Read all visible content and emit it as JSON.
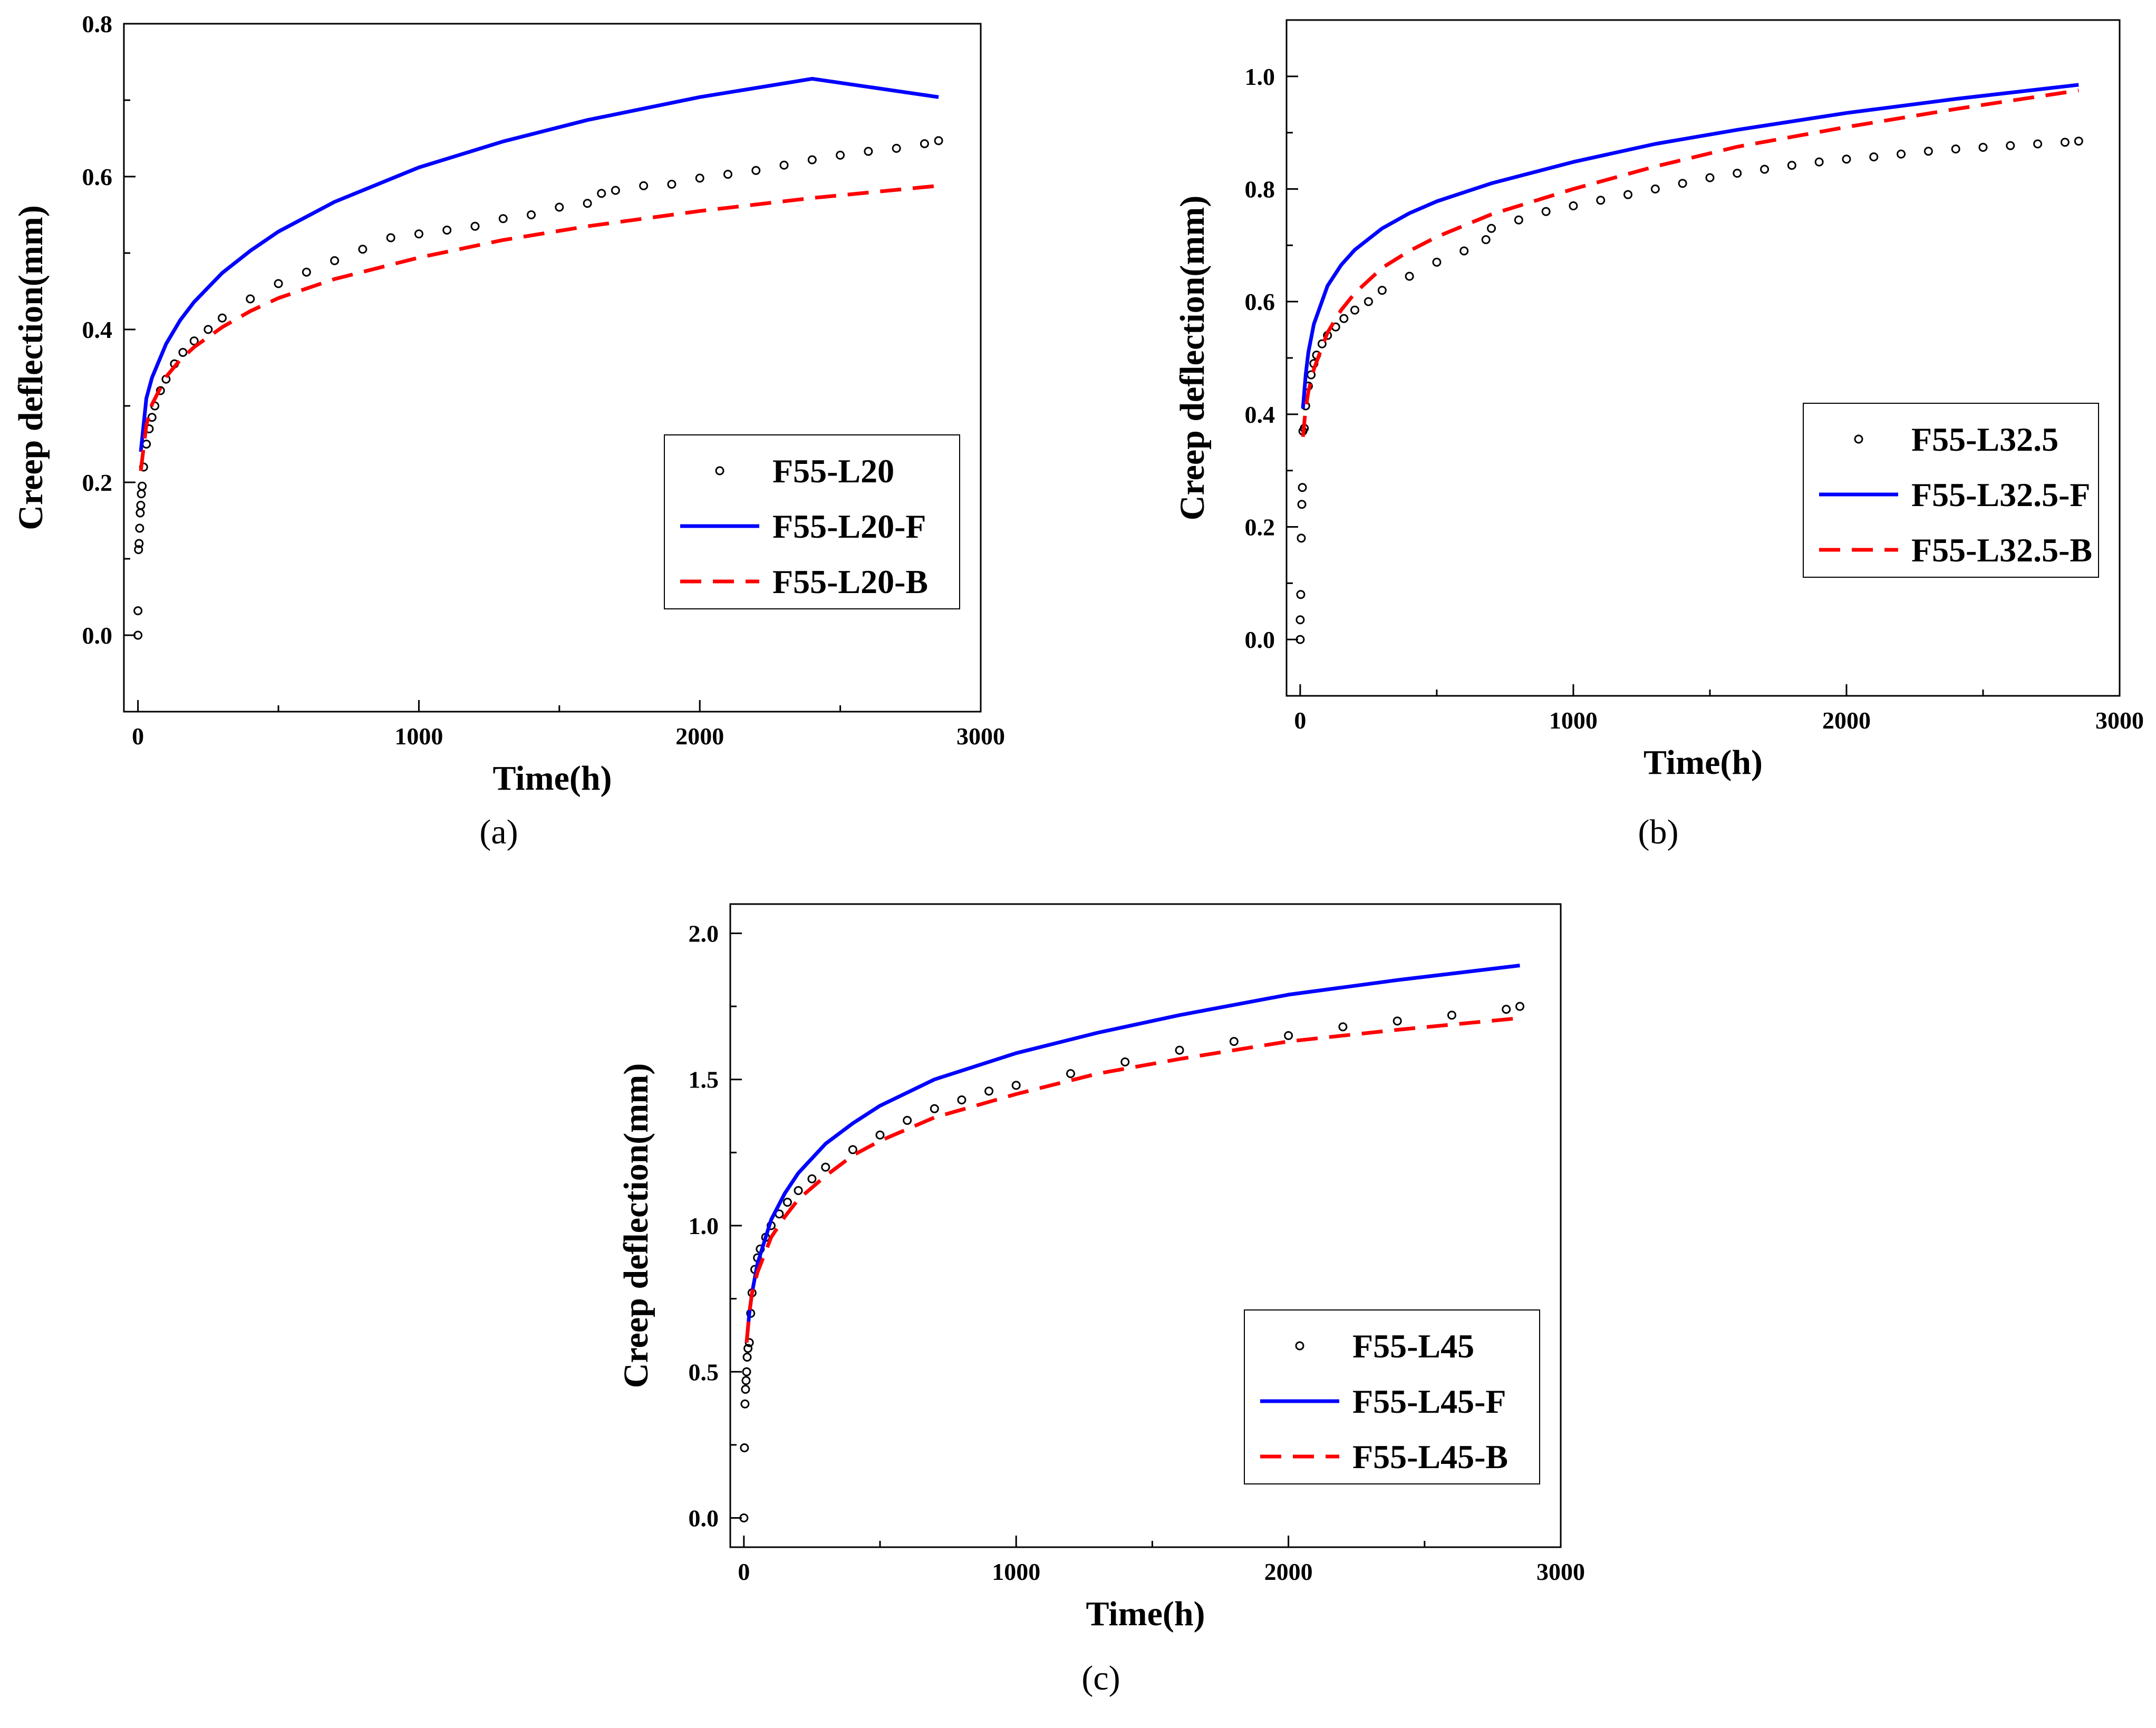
{
  "figure": {
    "colors": {
      "measured": "#000000",
      "fit_f": "#0000ff",
      "fit_b": "#ff0000"
    }
  },
  "chart_data": [
    {
      "type": "line",
      "caption": "(a)",
      "xlabel": "Time(h)",
      "ylabel": "Creep deflection(mm)",
      "xlim": [
        -50,
        3000
      ],
      "ylim": [
        -0.1,
        0.8
      ],
      "xticks": [
        "0",
        "1000",
        "2000",
        "3000"
      ],
      "yticks": [
        "0.0",
        "0.2",
        "0.4",
        "0.6",
        "0.8"
      ],
      "legend_position": "bottom-right",
      "series": [
        {
          "name": "F55-L20",
          "style": "circles",
          "x": [
            0,
            0,
            2,
            4,
            6,
            8,
            10,
            12,
            15,
            20,
            30,
            40,
            50,
            60,
            80,
            100,
            130,
            160,
            200,
            250,
            300,
            400,
            500,
            600,
            700,
            800,
            900,
            1000,
            1100,
            1200,
            1300,
            1400,
            1500,
            1600,
            1650,
            1700,
            1800,
            1900,
            2000,
            2100,
            2200,
            2300,
            2400,
            2500,
            2600,
            2700,
            2800,
            2850
          ],
          "y": [
            0.0,
            0.032,
            0.112,
            0.12,
            0.14,
            0.16,
            0.17,
            0.185,
            0.195,
            0.22,
            0.25,
            0.27,
            0.285,
            0.3,
            0.32,
            0.335,
            0.355,
            0.37,
            0.385,
            0.4,
            0.415,
            0.44,
            0.46,
            0.475,
            0.49,
            0.505,
            0.52,
            0.525,
            0.53,
            0.535,
            0.545,
            0.55,
            0.56,
            0.565,
            0.578,
            0.582,
            0.588,
            0.59,
            0.598,
            0.603,
            0.608,
            0.615,
            0.622,
            0.628,
            0.633,
            0.637,
            0.643,
            0.647
          ]
        },
        {
          "name": "F55-L20-F",
          "style": "solid",
          "x": [
            10,
            30,
            50,
            100,
            150,
            200,
            300,
            400,
            500,
            700,
            1000,
            1300,
            1600,
            2000,
            2400,
            2850
          ],
          "y": [
            0.24,
            0.31,
            0.337,
            0.381,
            0.412,
            0.436,
            0.474,
            0.503,
            0.528,
            0.567,
            0.612,
            0.646,
            0.674,
            0.704,
            0.728,
            0.704
          ]
        },
        {
          "name": "F55-L20-B",
          "style": "dashed",
          "x": [
            10,
            30,
            50,
            100,
            150,
            200,
            300,
            400,
            500,
            700,
            1000,
            1300,
            1600,
            2000,
            2400,
            2850
          ],
          "y": [
            0.215,
            0.275,
            0.302,
            0.338,
            0.36,
            0.377,
            0.403,
            0.424,
            0.441,
            0.466,
            0.494,
            0.517,
            0.535,
            0.555,
            0.572,
            0.588
          ]
        }
      ]
    },
    {
      "type": "line",
      "caption": "(b)",
      "xlabel": "Time(h)",
      "ylabel": "Creep deflection(mm)",
      "xlim": [
        -50,
        3000
      ],
      "ylim": [
        -0.1,
        1.1
      ],
      "xticks": [
        "0",
        "1000",
        "2000",
        "3000"
      ],
      "yticks": [
        "0.0",
        "0.2",
        "0.4",
        "0.6",
        "0.8",
        "1.0"
      ],
      "legend_position": "bottom-right",
      "series": [
        {
          "name": "F55-L32.5",
          "style": "circles",
          "x": [
            0,
            0,
            2,
            4,
            6,
            8,
            10,
            15,
            20,
            30,
            40,
            50,
            60,
            80,
            100,
            130,
            160,
            200,
            250,
            300,
            400,
            500,
            600,
            680,
            700,
            800,
            900,
            1000,
            1100,
            1200,
            1300,
            1400,
            1500,
            1600,
            1700,
            1800,
            1900,
            2000,
            2100,
            2200,
            2300,
            2400,
            2500,
            2600,
            2700,
            2800,
            2850
          ],
          "y": [
            0.0,
            0.035,
            0.08,
            0.18,
            0.24,
            0.27,
            0.37,
            0.375,
            0.415,
            0.45,
            0.47,
            0.49,
            0.505,
            0.525,
            0.54,
            0.555,
            0.57,
            0.585,
            0.6,
            0.62,
            0.645,
            0.67,
            0.69,
            0.71,
            0.73,
            0.745,
            0.76,
            0.77,
            0.78,
            0.79,
            0.8,
            0.81,
            0.82,
            0.828,
            0.835,
            0.842,
            0.848,
            0.853,
            0.857,
            0.862,
            0.867,
            0.871,
            0.874,
            0.877,
            0.88,
            0.883,
            0.885
          ]
        },
        {
          "name": "F55-L32.5-F",
          "style": "solid",
          "x": [
            10,
            20,
            30,
            50,
            100,
            150,
            200,
            300,
            400,
            500,
            700,
            1000,
            1300,
            1600,
            2000,
            2400,
            2850
          ],
          "y": [
            0.41,
            0.47,
            0.51,
            0.56,
            0.628,
            0.665,
            0.692,
            0.73,
            0.757,
            0.778,
            0.81,
            0.848,
            0.88,
            0.905,
            0.935,
            0.96,
            0.985
          ]
        },
        {
          "name": "F55-L32.5-B",
          "style": "dashed",
          "x": [
            10,
            20,
            30,
            50,
            100,
            150,
            200,
            300,
            400,
            500,
            700,
            1000,
            1300,
            1600,
            2000,
            2400,
            2850
          ],
          "y": [
            0.36,
            0.41,
            0.44,
            0.48,
            0.545,
            0.585,
            0.615,
            0.66,
            0.69,
            0.715,
            0.755,
            0.8,
            0.84,
            0.875,
            0.91,
            0.942,
            0.975
          ]
        }
      ]
    },
    {
      "type": "line",
      "caption": "(c)",
      "xlabel": "Time(h)",
      "ylabel": "Creep deflection(mm)",
      "xlim": [
        -50,
        3000
      ],
      "ylim": [
        -0.1,
        2.1
      ],
      "xticks": [
        "0",
        "1000",
        "2000",
        "3000"
      ],
      "yticks": [
        "0.0",
        "0.5",
        "1.0",
        "1.5",
        "2.0"
      ],
      "legend_position": "bottom-right",
      "series": [
        {
          "name": "F55-L45",
          "style": "circles",
          "x": [
            0,
            2,
            4,
            6,
            8,
            10,
            12,
            15,
            20,
            25,
            30,
            40,
            50,
            60,
            80,
            100,
            130,
            160,
            200,
            250,
            300,
            400,
            500,
            600,
            700,
            800,
            900,
            1000,
            1200,
            1400,
            1600,
            1800,
            2000,
            2200,
            2400,
            2600,
            2800,
            2850
          ],
          "y": [
            0.0,
            0.24,
            0.39,
            0.44,
            0.47,
            0.5,
            0.55,
            0.58,
            0.6,
            0.7,
            0.77,
            0.85,
            0.89,
            0.92,
            0.96,
            1.0,
            1.04,
            1.08,
            1.12,
            1.16,
            1.2,
            1.26,
            1.31,
            1.36,
            1.4,
            1.43,
            1.46,
            1.48,
            1.52,
            1.56,
            1.6,
            1.63,
            1.65,
            1.68,
            1.7,
            1.72,
            1.74,
            1.75
          ]
        },
        {
          "name": "F55-L45-F",
          "style": "solid",
          "x": [
            10,
            20,
            30,
            50,
            100,
            150,
            200,
            300,
            400,
            500,
            700,
            1000,
            1300,
            1600,
            2000,
            2400,
            2850
          ],
          "y": [
            0.6,
            0.7,
            0.77,
            0.87,
            1.02,
            1.11,
            1.18,
            1.28,
            1.35,
            1.41,
            1.5,
            1.59,
            1.66,
            1.72,
            1.79,
            1.84,
            1.89
          ]
        },
        {
          "name": "F55-L45-B",
          "style": "dashed",
          "x": [
            10,
            20,
            30,
            50,
            100,
            150,
            200,
            300,
            400,
            500,
            700,
            1000,
            1300,
            1600,
            2000,
            2400,
            2850
          ],
          "y": [
            0.6,
            0.7,
            0.77,
            0.84,
            0.96,
            1.03,
            1.09,
            1.17,
            1.24,
            1.29,
            1.37,
            1.45,
            1.52,
            1.57,
            1.63,
            1.67,
            1.71
          ]
        }
      ]
    }
  ]
}
